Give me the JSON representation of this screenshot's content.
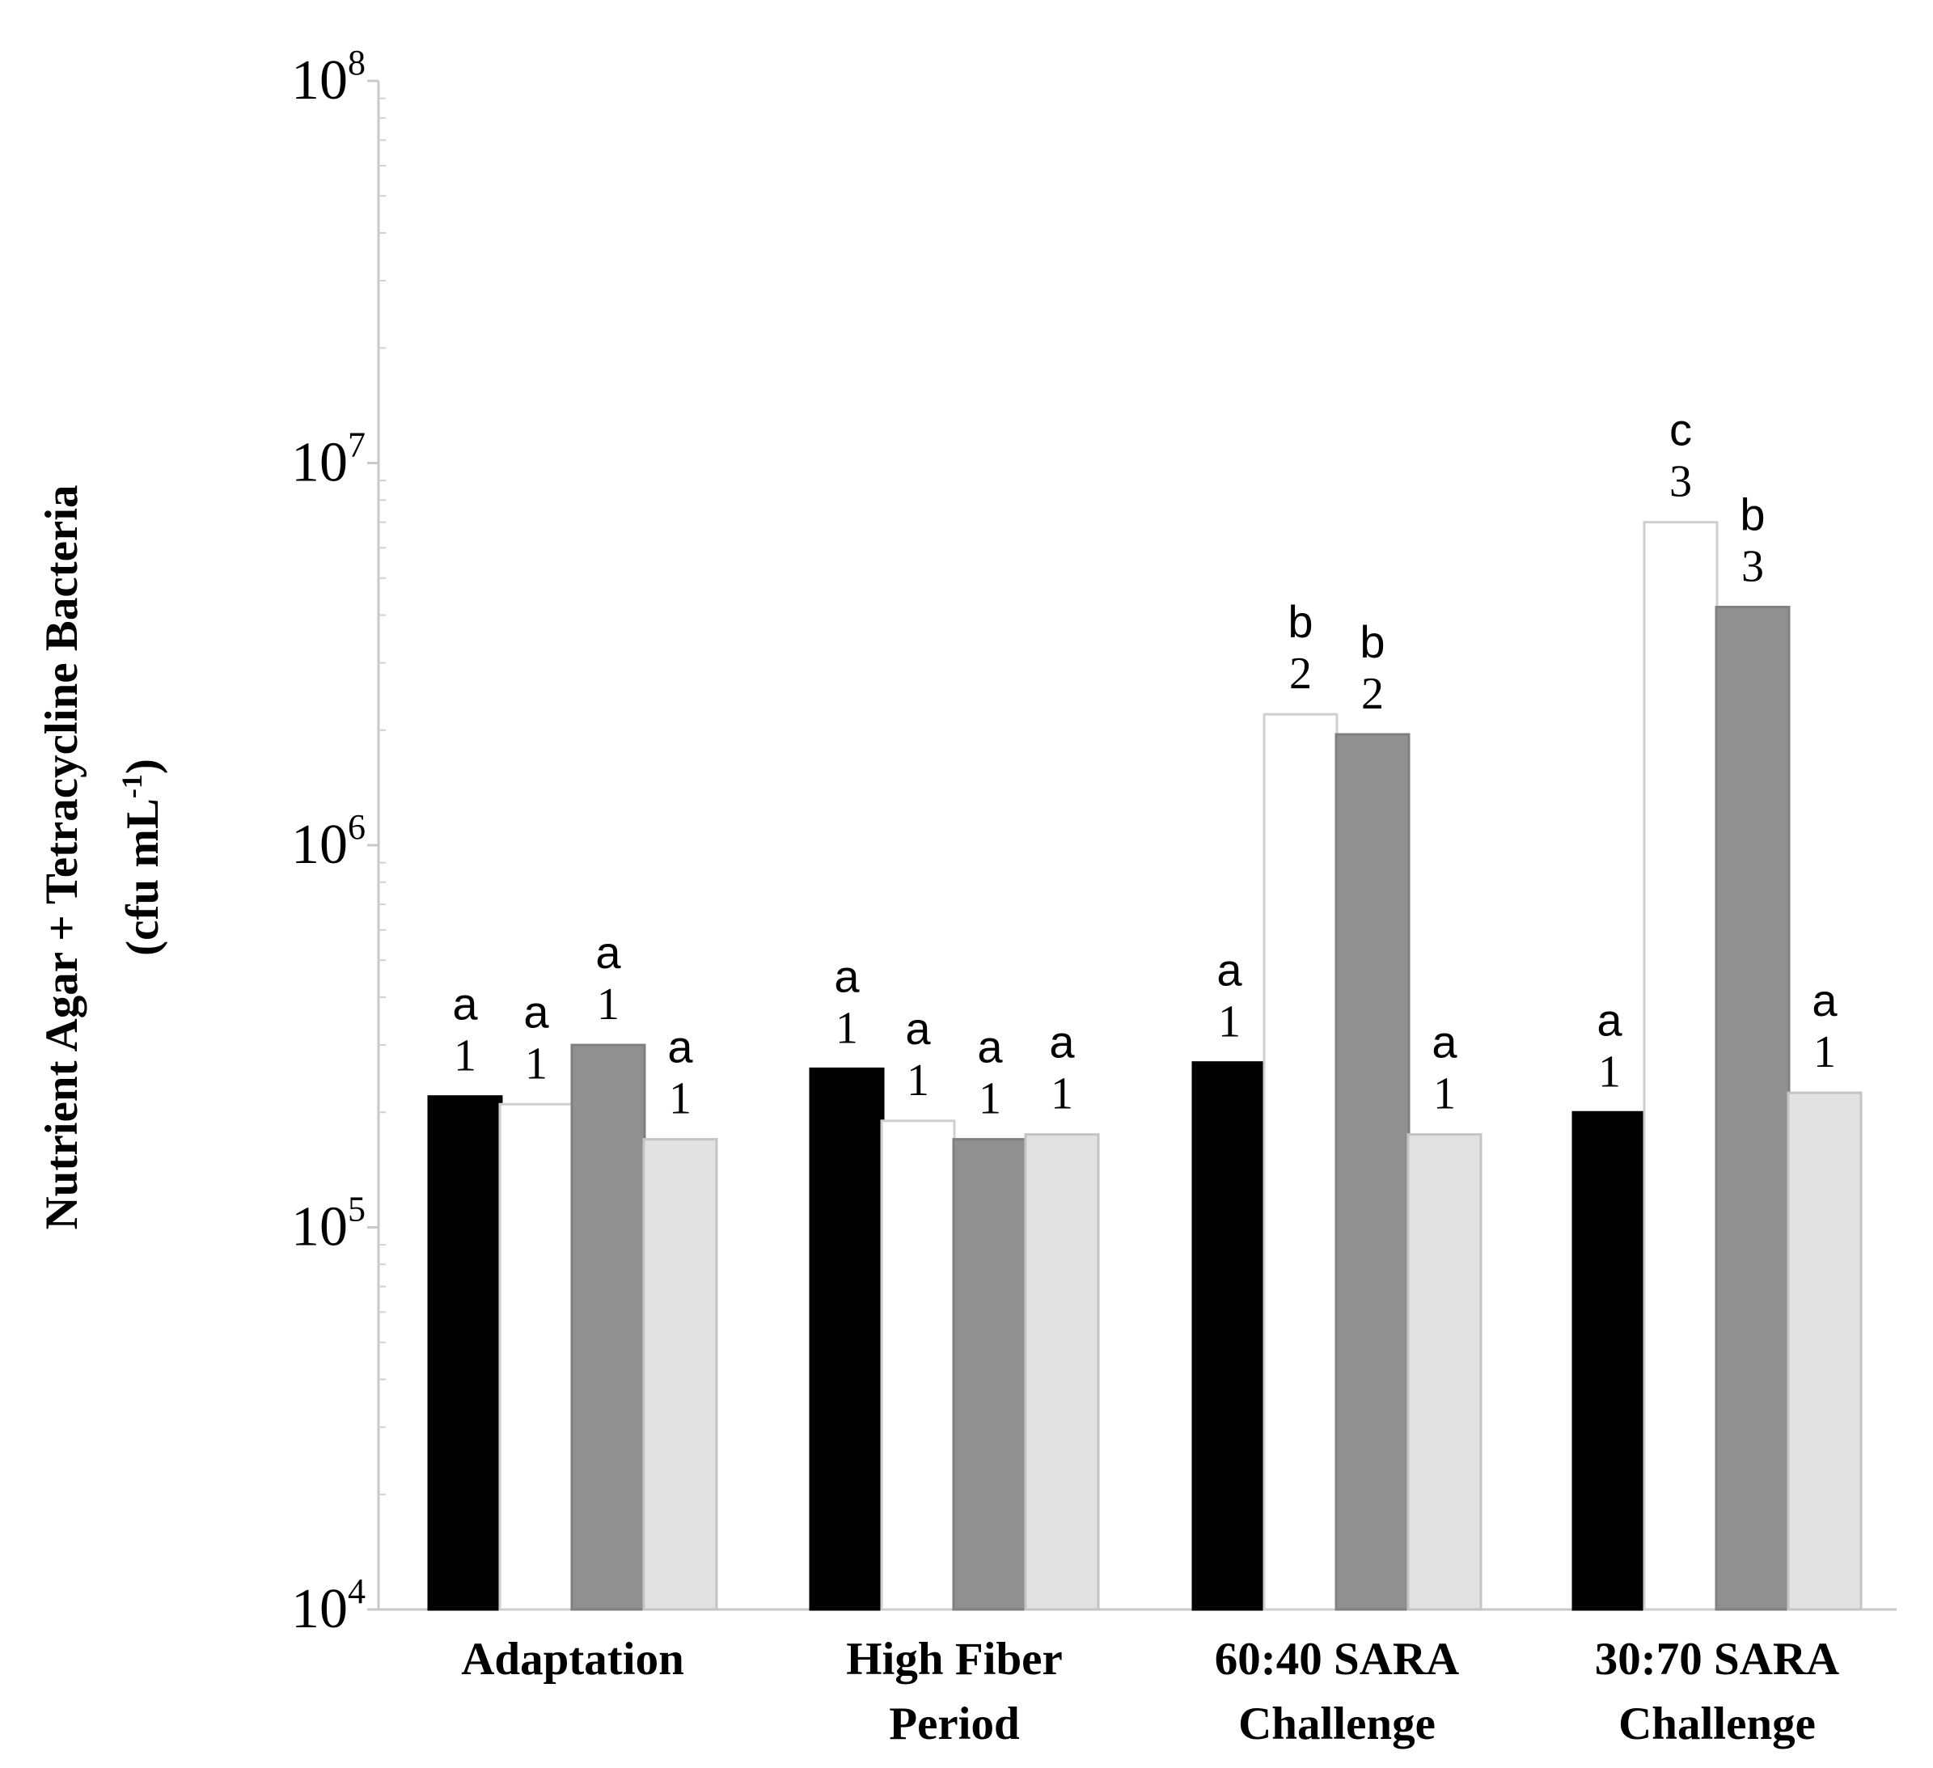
{
  "chart_data": {
    "type": "bar",
    "title": "",
    "xlabel": "",
    "ylabel": "Nutrient Agar + Tetracycline Bacteria",
    "ylabel_units_prefix": "(cfu mL",
    "ylabel_units_sup": "-1",
    "ylabel_units_suffix": ")",
    "yscale": "log",
    "ylim": [
      10000,
      100000000
    ],
    "y_ticks": [
      {
        "base": "10",
        "exp": "4",
        "value": 10000
      },
      {
        "base": "10",
        "exp": "5",
        "value": 100000
      },
      {
        "base": "10",
        "exp": "6",
        "value": 1000000
      },
      {
        "base": "10",
        "exp": "7",
        "value": 10000000
      },
      {
        "base": "10",
        "exp": "8",
        "value": 100000000
      }
    ],
    "categories": [
      [
        "Adaptation"
      ],
      [
        "High Fiber",
        "Period"
      ],
      [
        "60:40 SARA",
        "Challenge"
      ],
      [
        "30:70 SARA",
        "Challenge"
      ]
    ],
    "series": [
      {
        "name": "series-1",
        "fill": "#000000",
        "stroke": "#000000",
        "values": [
          220000,
          260000,
          270000,
          200000
        ],
        "letters": [
          "a",
          "a",
          "a",
          "a"
        ],
        "numbers": [
          "1",
          "1",
          "1",
          "1"
        ]
      },
      {
        "name": "series-2",
        "fill": "#ffffff",
        "stroke": "#cfcfcf",
        "values": [
          210000,
          190000,
          2200000,
          7000000
        ],
        "letters": [
          "a",
          "a",
          "b",
          "c"
        ],
        "numbers": [
          "1",
          "1",
          "2",
          "3"
        ]
      },
      {
        "name": "series-3",
        "fill": "#909090",
        "stroke": "#808080",
        "values": [
          300000,
          170000,
          1950000,
          4200000
        ],
        "letters": [
          "a",
          "a",
          "b",
          "b"
        ],
        "numbers": [
          "1",
          "1",
          "2",
          "3"
        ]
      },
      {
        "name": "series-4",
        "fill": "#e2e2e2",
        "stroke": "#c4c4c4",
        "values": [
          170000,
          175000,
          175000,
          225000
        ],
        "letters": [
          "a",
          "a",
          "a",
          "a"
        ],
        "numbers": [
          "1",
          "1",
          "1",
          "1"
        ]
      }
    ],
    "legend": "none",
    "grid": false
  }
}
